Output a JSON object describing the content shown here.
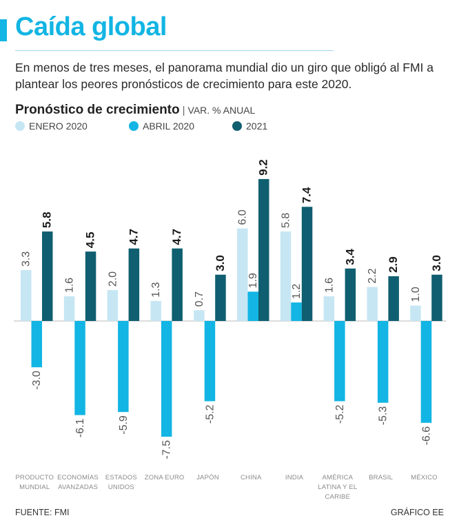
{
  "header": {
    "title": "Caída global",
    "subtitle": "En menos de tres meses, el panorama mundial dio un giro que obligó al FMI a plantear los peores pronósticos de crecimiento para este 2020."
  },
  "footer": {
    "source": "FUENTE: FMI",
    "credit": "GRÁFICO EE"
  },
  "chart_data": {
    "type": "bar",
    "title": "Pronóstico de crecimiento",
    "unit": "VAR. % ANUAL",
    "categories": [
      [
        "PRODUCTO",
        "MUNDIAL"
      ],
      [
        "ECONOMÍAS",
        "AVANZADAS"
      ],
      [
        "ESTADOS",
        "UNIDOS"
      ],
      [
        "ZONA EURO"
      ],
      [
        "JAPÓN"
      ],
      [
        "CHINA"
      ],
      [
        "INDIA"
      ],
      [
        "AMÉRICA",
        "LATINA Y EL",
        "CARIBE"
      ],
      [
        "BRASIL"
      ],
      [
        "MÉXICO"
      ]
    ],
    "series": [
      {
        "name": "ENERO 2020",
        "color": "#c6e6f3",
        "bold_labels": false,
        "values": [
          3.3,
          1.6,
          2.0,
          1.3,
          0.7,
          6.0,
          5.8,
          1.6,
          2.2,
          1.0
        ]
      },
      {
        "name": "ABRIL 2020",
        "color": "#12b5e3",
        "bold_labels": false,
        "values": [
          -3.0,
          -6.1,
          -5.9,
          -7.5,
          -5.2,
          1.9,
          1.2,
          -5.2,
          -5.3,
          -6.6
        ]
      },
      {
        "name": "2021",
        "color": "#0f5f70",
        "bold_labels": true,
        "values": [
          5.8,
          4.5,
          4.7,
          4.7,
          3.0,
          9.2,
          7.4,
          3.4,
          2.9,
          3.0
        ]
      }
    ],
    "ylim": [
      -8,
      10
    ],
    "grid": false,
    "legend": "top-left"
  }
}
